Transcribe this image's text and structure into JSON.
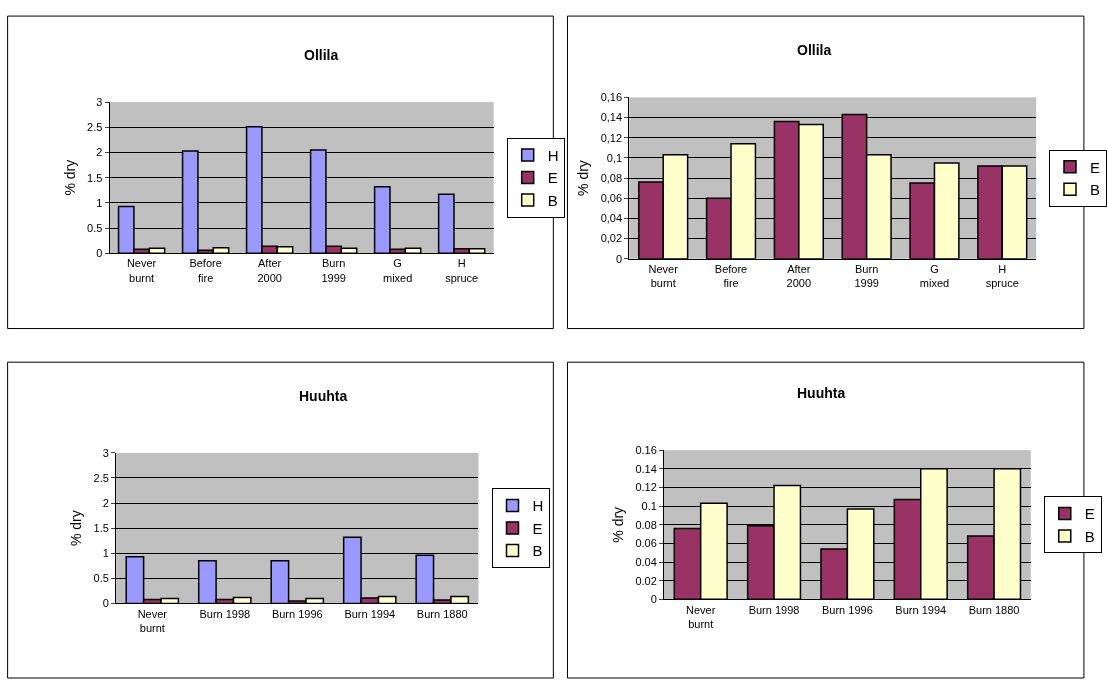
{
  "chart_data": [
    {
      "type": "bar",
      "title": "Ollila",
      "ylabel": "% dry",
      "categories": [
        "Never\nburnt",
        "Before\nfire",
        "After\n2000",
        "Burn\n1999",
        "G\nmixed",
        "H\nspruce"
      ],
      "series": [
        {
          "name": "H",
          "color": "#9999ff",
          "values": [
            0.93,
            2.03,
            2.51,
            2.05,
            1.32,
            1.17
          ]
        },
        {
          "name": "E",
          "color": "#993366",
          "values": [
            0.08,
            0.06,
            0.14,
            0.14,
            0.08,
            0.09
          ]
        },
        {
          "name": "B",
          "color": "#ffffcc",
          "values": [
            0.1,
            0.11,
            0.13,
            0.1,
            0.1,
            0.09
          ]
        }
      ],
      "ylim": [
        0,
        3
      ],
      "yticks": [
        0,
        0.5,
        1,
        1.5,
        2,
        2.5,
        3
      ],
      "grid": "y",
      "legend": "right"
    },
    {
      "type": "bar",
      "title": "Ollila",
      "ylabel": "% dry",
      "categories": [
        "Never\nburnt",
        "Before\nfire",
        "After\n2000",
        "Burn\n1999",
        "G\nmixed",
        "H\nspruce"
      ],
      "series": [
        {
          "name": "E",
          "color": "#993366",
          "values": [
            0.076,
            0.06,
            0.136,
            0.143,
            0.075,
            0.092
          ]
        },
        {
          "name": "B",
          "color": "#ffffcc",
          "values": [
            0.103,
            0.114,
            0.133,
            0.103,
            0.095,
            0.092
          ]
        }
      ],
      "ylim": [
        0,
        0.16
      ],
      "yticks": [
        0,
        {
          "value": 0.02,
          "label": "0,02"
        },
        {
          "value": 0.04,
          "label": "0,04"
        },
        {
          "value": 0.06,
          "label": "0,06"
        },
        {
          "value": 0.08,
          "label": "0,08"
        },
        {
          "value": 0.1,
          "label": "0,1"
        },
        {
          "value": 0.12,
          "label": "0,12"
        },
        {
          "value": 0.14,
          "label": "0,14"
        },
        {
          "value": 0.16,
          "label": "0,16"
        }
      ],
      "grid": "y",
      "legend": "right"
    },
    {
      "type": "bar",
      "title": "Huuhta",
      "ylabel": "% dry",
      "categories": [
        "Never\nburnt",
        "Burn 1998",
        "Burn 1996",
        "Burn 1994",
        "Burn 1880"
      ],
      "series": [
        {
          "name": "H",
          "color": "#9999ff",
          "values": [
            0.93,
            0.85,
            0.85,
            1.32,
            0.96
          ]
        },
        {
          "name": "E",
          "color": "#993366",
          "values": [
            0.08,
            0.08,
            0.05,
            0.11,
            0.07
          ]
        },
        {
          "name": "B",
          "color": "#ffffcc",
          "values": [
            0.1,
            0.12,
            0.1,
            0.14,
            0.14
          ]
        }
      ],
      "ylim": [
        0,
        3
      ],
      "yticks": [
        0,
        0.5,
        1,
        1.5,
        2,
        2.5,
        3
      ],
      "grid": "y",
      "legend": "right"
    },
    {
      "type": "bar",
      "title": "Huuhta",
      "ylabel": "% dry",
      "categories": [
        "Never\nburnt",
        "Burn 1998",
        "Burn 1996",
        "Burn 1994",
        "Burn 1880"
      ],
      "series": [
        {
          "name": "E",
          "color": "#993366",
          "values": [
            0.076,
            0.079,
            0.054,
            0.107,
            0.068
          ]
        },
        {
          "name": "B",
          "color": "#ffffcc",
          "values": [
            0.103,
            0.122,
            0.097,
            0.14,
            0.14
          ]
        }
      ],
      "ylim": [
        0,
        0.16
      ],
      "yticks": [
        0,
        0.02,
        0.04,
        0.06,
        0.08,
        0.1,
        0.12,
        0.14,
        0.16
      ],
      "grid": "y",
      "legend": "right"
    }
  ]
}
